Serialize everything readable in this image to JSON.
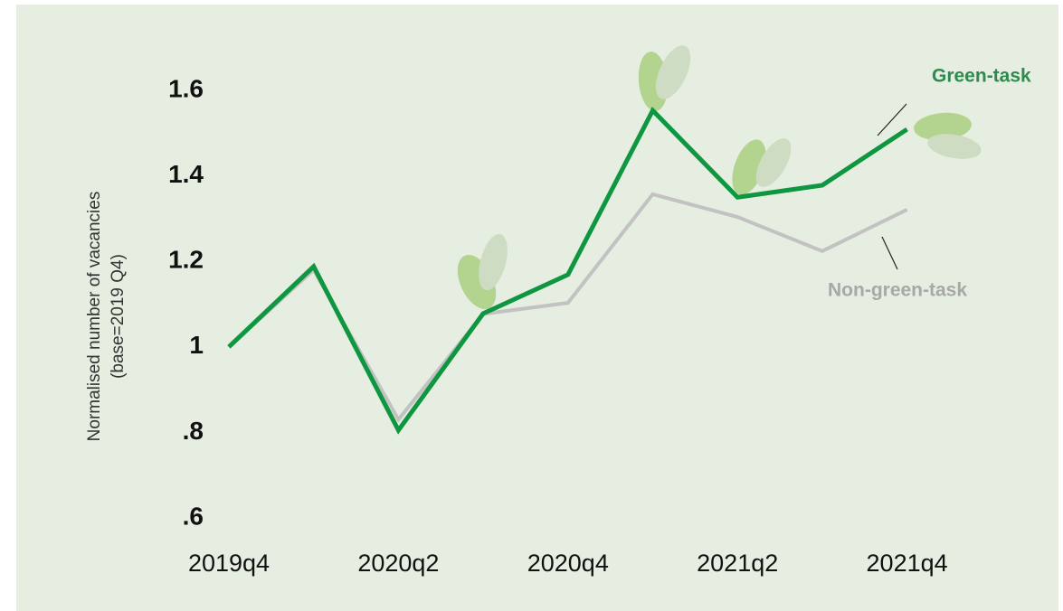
{
  "chart_data": {
    "type": "line",
    "ylabel": [
      "Normalised number of vacancies",
      "(base=2019 Q4)"
    ],
    "categories": [
      "2019q4",
      null,
      "2020q2",
      null,
      "2020q4",
      null,
      "2021q2",
      null,
      "2021q4"
    ],
    "series": [
      {
        "name": "Non-green-task",
        "color": "#c2c2c2",
        "values": [
          1.0,
          1.18,
          0.83,
          1.077,
          1.103,
          1.357,
          1.304,
          1.224,
          1.321
        ]
      },
      {
        "name": "Green-task",
        "color": "#0e9640",
        "values": [
          1.0,
          1.188,
          0.805,
          1.078,
          1.169,
          1.553,
          1.35,
          1.378,
          1.509
        ]
      }
    ],
    "ylim": [
      0.6,
      1.6
    ],
    "yticks": [
      {
        "value": 0.6,
        "label": ".6"
      },
      {
        "value": 0.8,
        "label": ".8"
      },
      1,
      1.2,
      1.4,
      1.6
    ],
    "grid": false
  }
}
